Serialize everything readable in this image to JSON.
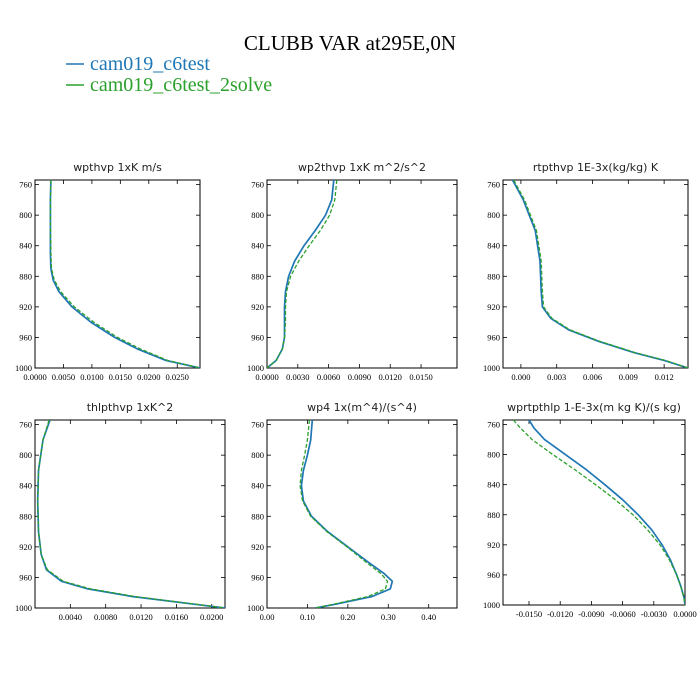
{
  "figure": {
    "title": "CLUBB VAR at295E,0N",
    "colors": {
      "blue": "#1f77b4",
      "green": "#2ca02c"
    }
  },
  "legend": [
    {
      "label": "cam019_c6test",
      "color": "#1f77b4",
      "dash": "solid"
    },
    {
      "label": "cam019_c6test_2solve",
      "color": "#2ca02c",
      "dash": "dashed"
    }
  ],
  "chart_data": [
    {
      "type": "line",
      "title": "wpthvp  1xK m/s",
      "xlim": [
        0,
        0.029
      ],
      "ylim": [
        1000,
        754
      ],
      "y_inverted": true,
      "xticks": [
        "0.0000",
        "0.0050",
        "0.0100",
        "0.0150",
        "0.0200",
        "0.0250"
      ],
      "xtick_values": [
        0,
        0.005,
        0.01,
        0.015,
        0.02,
        0.025
      ],
      "yticks": [
        "760",
        "800",
        "840",
        "880",
        "920",
        "960",
        "1000"
      ],
      "ytick_values": [
        760,
        800,
        840,
        880,
        920,
        960,
        1000
      ],
      "y": [
        754,
        780,
        810,
        850,
        870,
        885,
        900,
        920,
        940,
        960,
        975,
        990,
        1000
      ],
      "series": [
        {
          "name": "cam019_c6test",
          "values": [
            0.0028,
            0.0027,
            0.0027,
            0.0027,
            0.0028,
            0.0032,
            0.0042,
            0.0065,
            0.0098,
            0.014,
            0.018,
            0.023,
            0.029
          ]
        },
        {
          "name": "cam019_c6test_2solve",
          "values": [
            0.0028,
            0.0027,
            0.0027,
            0.0028,
            0.0029,
            0.0034,
            0.0045,
            0.0069,
            0.0103,
            0.0145,
            0.0185,
            0.0233,
            0.029
          ]
        }
      ]
    },
    {
      "type": "line",
      "title": "wp2thvp  1xK m^2/s^2",
      "xlim": [
        0,
        0.0185
      ],
      "ylim": [
        1000,
        754
      ],
      "y_inverted": true,
      "xticks": [
        "0.0000",
        "0.0030",
        "0.0060",
        "0.0090",
        "0.0120",
        "0.0150"
      ],
      "xtick_values": [
        0,
        0.003,
        0.006,
        0.009,
        0.012,
        0.015
      ],
      "yticks": [
        "760",
        "800",
        "840",
        "880",
        "920",
        "960",
        "1000"
      ],
      "ytick_values": [
        760,
        800,
        840,
        880,
        920,
        960,
        1000
      ],
      "y": [
        754,
        780,
        800,
        820,
        840,
        860,
        880,
        900,
        920,
        940,
        960,
        975,
        990,
        1000
      ],
      "series": [
        {
          "name": "cam019_c6test",
          "values": [
            0.0065,
            0.0063,
            0.0057,
            0.0047,
            0.0036,
            0.0027,
            0.0021,
            0.0018,
            0.0017,
            0.0017,
            0.0017,
            0.0015,
            0.0009,
            0.0
          ]
        },
        {
          "name": "cam019_c6test_2solve",
          "values": [
            0.0068,
            0.0066,
            0.0061,
            0.0052,
            0.0041,
            0.0031,
            0.0023,
            0.0019,
            0.0018,
            0.0018,
            0.0017,
            0.0015,
            0.0009,
            0.0
          ]
        }
      ]
    },
    {
      "type": "line",
      "title": "rtpthvp  1E-3x(kg/kg) K",
      "xlim": [
        -0.0015,
        0.014
      ],
      "ylim": [
        1000,
        754
      ],
      "y_inverted": true,
      "xticks": [
        "0.000",
        "0.003",
        "0.006",
        "0.009",
        "0.012"
      ],
      "xtick_values": [
        0,
        0.003,
        0.006,
        0.009,
        0.012
      ],
      "yticks": [
        "760",
        "800",
        "840",
        "880",
        "920",
        "960",
        "1000"
      ],
      "ytick_values": [
        760,
        800,
        840,
        880,
        920,
        960,
        1000
      ],
      "y": [
        754,
        780,
        820,
        860,
        900,
        920,
        935,
        950,
        965,
        980,
        990,
        1000
      ],
      "series": [
        {
          "name": "cam019_c6test",
          "values": [
            -0.0007,
            0.0002,
            0.0012,
            0.0016,
            0.0017,
            0.0018,
            0.0025,
            0.004,
            0.0065,
            0.0095,
            0.012,
            0.014
          ]
        },
        {
          "name": "cam019_c6test_2solve",
          "values": [
            -0.0006,
            0.0003,
            0.0013,
            0.0017,
            0.0018,
            0.0019,
            0.0026,
            0.0041,
            0.0066,
            0.0096,
            0.0121,
            0.014
          ]
        }
      ]
    },
    {
      "type": "line",
      "title": "thlpthvp  1xK^2",
      "xlim": [
        0,
        0.0215
      ],
      "ylim": [
        1000,
        754
      ],
      "y_inverted": true,
      "xticks": [
        "0.0040",
        "0.0080",
        "0.0120",
        "0.0160",
        "0.0200"
      ],
      "xtick_values": [
        0.004,
        0.008,
        0.012,
        0.016,
        0.02
      ],
      "yticks": [
        "760",
        "800",
        "840",
        "880",
        "920",
        "960",
        "1000"
      ],
      "ytick_values": [
        760,
        800,
        840,
        880,
        920,
        960,
        1000
      ],
      "y": [
        754,
        780,
        820,
        860,
        900,
        930,
        950,
        965,
        975,
        985,
        995,
        1000
      ],
      "series": [
        {
          "name": "cam019_c6test",
          "values": [
            0.0017,
            0.0009,
            0.0004,
            0.0003,
            0.0004,
            0.0007,
            0.0013,
            0.003,
            0.006,
            0.011,
            0.018,
            0.0215
          ]
        },
        {
          "name": "cam019_c6test_2solve",
          "values": [
            0.0016,
            0.0009,
            0.0004,
            0.0003,
            0.0004,
            0.0007,
            0.0014,
            0.0032,
            0.0063,
            0.0113,
            0.0182,
            0.0215
          ]
        }
      ]
    },
    {
      "type": "line",
      "title": "wp4  1x(m^4)/(s^4)",
      "xlim": [
        0,
        0.47
      ],
      "ylim": [
        1000,
        754
      ],
      "y_inverted": true,
      "xticks": [
        "0.00",
        "0.10",
        "0.20",
        "0.30",
        "0.40"
      ],
      "xtick_values": [
        0,
        0.1,
        0.2,
        0.3,
        0.4
      ],
      "yticks": [
        "760",
        "800",
        "840",
        "880",
        "920",
        "960",
        "1000"
      ],
      "ytick_values": [
        760,
        800,
        840,
        880,
        920,
        960,
        1000
      ],
      "y": [
        754,
        780,
        800,
        820,
        840,
        860,
        880,
        900,
        920,
        940,
        955,
        965,
        975,
        985,
        995,
        1000
      ],
      "series": [
        {
          "name": "cam019_c6test",
          "values": [
            0.112,
            0.108,
            0.1,
            0.09,
            0.085,
            0.09,
            0.11,
            0.15,
            0.2,
            0.25,
            0.29,
            0.31,
            0.305,
            0.26,
            0.17,
            0.12
          ]
        },
        {
          "name": "cam019_c6test_2solve",
          "values": [
            0.105,
            0.1,
            0.093,
            0.085,
            0.082,
            0.088,
            0.108,
            0.148,
            0.198,
            0.245,
            0.282,
            0.298,
            0.293,
            0.25,
            0.165,
            0.12
          ]
        }
      ]
    },
    {
      "type": "line",
      "title": "wprtpthlp  1-E-3x(m kg K)/(s kg)",
      "xlim": [
        -0.0175,
        0
      ],
      "ylim": [
        1000,
        754
      ],
      "y_inverted": true,
      "xticks": [
        "-0.0150",
        "-0.0120",
        "-0.0090",
        "-0.0060",
        "-0.0030",
        "0.0000"
      ],
      "xtick_values": [
        -0.015,
        -0.012,
        -0.009,
        -0.006,
        -0.003,
        0
      ],
      "yticks": [
        "760",
        "800",
        "840",
        "880",
        "920",
        "960",
        "1000"
      ],
      "ytick_values": [
        760,
        800,
        840,
        880,
        920,
        960,
        1000
      ],
      "y": [
        754,
        765,
        780,
        800,
        820,
        840,
        860,
        880,
        900,
        920,
        940,
        960,
        975,
        990,
        1000
      ],
      "series": [
        {
          "name": "cam019_c6test",
          "values": [
            -0.015,
            -0.0145,
            -0.0135,
            -0.0115,
            -0.0095,
            -0.0077,
            -0.006,
            -0.0045,
            -0.0032,
            -0.0022,
            -0.0014,
            -0.0008,
            -0.0004,
            -0.0001,
            0.0
          ]
        },
        {
          "name": "cam019_c6test_2solve",
          "values": [
            -0.0165,
            -0.0158,
            -0.0147,
            -0.0127,
            -0.0106,
            -0.0086,
            -0.0067,
            -0.005,
            -0.0036,
            -0.0024,
            -0.0015,
            -0.0008,
            -0.0004,
            -0.0001,
            0.0
          ]
        }
      ]
    }
  ]
}
